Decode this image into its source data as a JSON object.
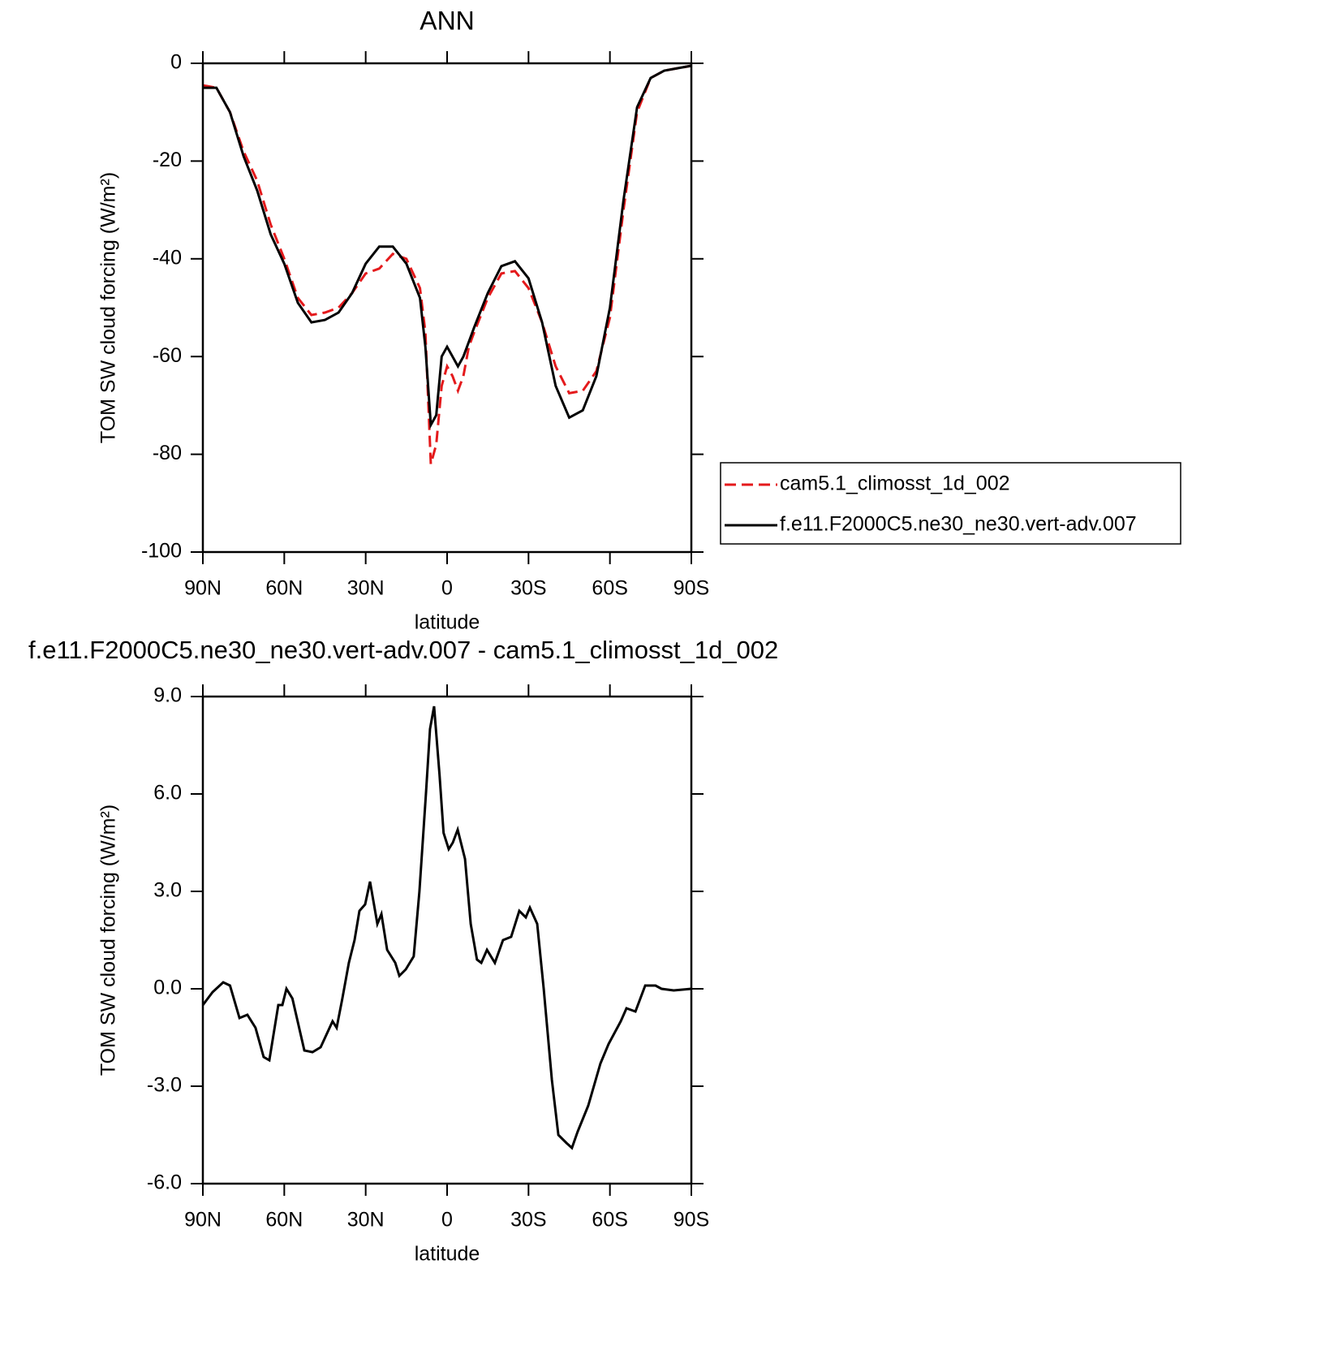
{
  "chart_data": [
    {
      "type": "line",
      "title": "ANN",
      "xlabel": "latitude",
      "ylabel": "TOM SW cloud forcing (W/m²)",
      "x": [
        90,
        85,
        80,
        75,
        70,
        65,
        60,
        55,
        50,
        45,
        40,
        35,
        30,
        25,
        20,
        15,
        10,
        8,
        6,
        4,
        2,
        0,
        -2,
        -4,
        -6,
        -8,
        -10,
        -15,
        -20,
        -25,
        -30,
        -35,
        -40,
        -45,
        -50,
        -55,
        -60,
        -65,
        -70,
        -75,
        -80,
        -85,
        -90
      ],
      "series": [
        {
          "name": "cam5.1_climosst_1d_002",
          "color": "#e41a1c",
          "style": "dashed",
          "values": [
            -4.5,
            -5,
            -10,
            -18,
            -24,
            -33,
            -40,
            -48,
            -51.5,
            -51,
            -50,
            -47,
            -43,
            -42,
            -39,
            -40,
            -46,
            -55,
            -82,
            -78,
            -66,
            -62,
            -64,
            -67,
            -64,
            -58,
            -55,
            -48,
            -43,
            -42.5,
            -46,
            -53,
            -62,
            -67.5,
            -67,
            -63,
            -52,
            -30,
            -10,
            -3,
            -1.5,
            -1,
            -0.5
          ]
        },
        {
          "name": "f.e11.F2000C5.ne30_ne30.vert-adv.007",
          "color": "#000000",
          "style": "solid",
          "values": [
            -5,
            -5,
            -10,
            -19,
            -26,
            -35,
            -41,
            -49,
            -53,
            -52.5,
            -51,
            -47,
            -41,
            -37.5,
            -37.5,
            -41,
            -48,
            -58,
            -74,
            -72,
            -60,
            -58,
            -60,
            -62,
            -60,
            -57,
            -54,
            -47,
            -41.5,
            -40.5,
            -44,
            -53,
            -66,
            -72.5,
            -71,
            -64,
            -50,
            -28,
            -9,
            -3,
            -1.5,
            -1,
            -0.5
          ]
        }
      ],
      "xlim": [
        90,
        -90
      ],
      "xticks": [
        {
          "value": 90,
          "label": "90N"
        },
        {
          "value": 60,
          "label": "60N"
        },
        {
          "value": 30,
          "label": "30N"
        },
        0,
        {
          "value": -30,
          "label": "30S"
        },
        {
          "value": -60,
          "label": "60S"
        },
        {
          "value": -90,
          "label": "90S"
        }
      ],
      "ylim": [
        -100,
        0
      ],
      "yticks": [
        0,
        -20,
        -40,
        -60,
        -80,
        -100
      ],
      "legend": "right"
    },
    {
      "type": "line",
      "title": "f.e11.F2000C5.ne30_ne30.vert-adv.007 - cam5.1_climosst_1d_002",
      "xlabel": "latitude",
      "ylabel": "TOM SW cloud forcing (W/m²)",
      "x": [
        90,
        86.4,
        82.5,
        80,
        76.5,
        73.6,
        70.6,
        67.6,
        65.5,
        62.2,
        60.7,
        59.2,
        57,
        52.6,
        49.6,
        46.6,
        42.2,
        40.7,
        38.6,
        36.2,
        34.1,
        32.3,
        30.2,
        28.4,
        25.7,
        24.2,
        22.1,
        19.1,
        17.6,
        15.2,
        12.3,
        10.2,
        7.8,
        6.3,
        4.8,
        2.8,
        1.3,
        -0.6,
        -2.1,
        -3.9,
        -6.6,
        -8.7,
        -11,
        -12.6,
        -14.7,
        -17.6,
        -20.6,
        -23.6,
        -26.6,
        -29,
        -30.5,
        -33.2,
        -35.6,
        -38.6,
        -41,
        -44,
        -46,
        -48.1,
        -52,
        -56.5,
        -59.5,
        -64,
        -66.1,
        -69.4,
        -73,
        -76.8,
        -79,
        -83.5,
        -90
      ],
      "series": [
        {
          "name": "f.e11.F2000C5.ne30_ne30.vert-adv.007 - cam5.1_climosst_1d_002",
          "color": "#000000",
          "style": "solid",
          "values": [
            -0.5,
            -0.1,
            0.2,
            0.1,
            -0.9,
            -0.8,
            -1.2,
            -2.1,
            -2.2,
            -0.5,
            -0.5,
            0,
            -0.3,
            -1.9,
            -1.95,
            -1.8,
            -1.0,
            -1.2,
            -0.3,
            0.8,
            1.5,
            2.4,
            2.6,
            3.3,
            2.0,
            2.3,
            1.2,
            0.8,
            0.4,
            0.6,
            1.0,
            3.0,
            6.0,
            8.0,
            8.7,
            6.6,
            4.8,
            4.3,
            4.5,
            4.9,
            4.0,
            2.0,
            0.9,
            0.8,
            1.2,
            0.8,
            1.5,
            1.6,
            2.4,
            2.2,
            2.5,
            2.0,
            0.0,
            -2.8,
            -4.5,
            -4.75,
            -4.9,
            -4.4,
            -3.6,
            -2.3,
            -1.7,
            -1.0,
            -0.6,
            -0.7,
            0.1,
            0.1,
            0.0,
            -0.05,
            0
          ]
        }
      ],
      "xlim": [
        90,
        -90
      ],
      "xticks": [
        {
          "value": 90,
          "label": "90N"
        },
        {
          "value": 60,
          "label": "60N"
        },
        {
          "value": 30,
          "label": "30N"
        },
        0,
        {
          "value": -30,
          "label": "30S"
        },
        {
          "value": -60,
          "label": "60S"
        },
        {
          "value": -90,
          "label": "90S"
        }
      ],
      "ylim": [
        -6,
        9
      ],
      "yticks": [
        {
          "value": 9,
          "label": "9.0"
        },
        {
          "value": 6,
          "label": "6.0"
        },
        {
          "value": 3,
          "label": "3.0"
        },
        {
          "value": 0,
          "label": "0.0"
        },
        {
          "value": -3,
          "label": "-3.0"
        },
        {
          "value": -6,
          "label": "-6.0"
        }
      ]
    }
  ]
}
